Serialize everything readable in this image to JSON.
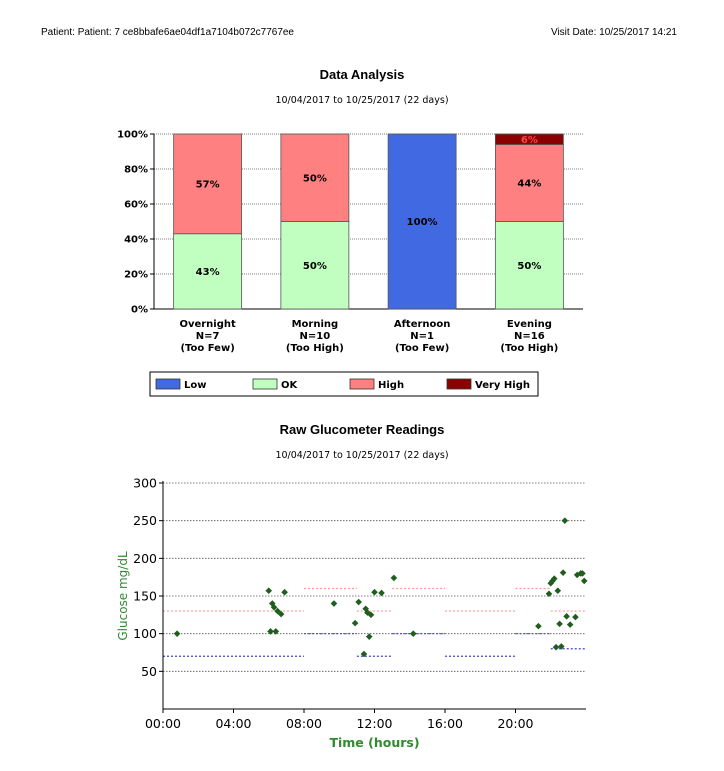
{
  "header": {
    "patient": "Patient: Patient: 7 ce8bbafe6ae04df1a7104b072c7767ee",
    "visit_date": "Visit Date: 10/25/2017 14:21"
  },
  "chart_data": [
    {
      "type": "bar",
      "title": "Data Analysis",
      "subtitle": "10/04/2017 to 10/25/2017 (22 days)",
      "stacked": true,
      "ylim": [
        0,
        100
      ],
      "yticks": [
        "0%",
        "20%",
        "40%",
        "60%",
        "80%",
        "100%"
      ],
      "categories": [
        {
          "name": "Overnight",
          "n": "N=7",
          "status": "(Too Few)"
        },
        {
          "name": "Morning",
          "n": "N=10",
          "status": "(Too High)"
        },
        {
          "name": "Afternoon",
          "n": "N=1",
          "status": "(Too Few)"
        },
        {
          "name": "Evening",
          "n": "N=16",
          "status": "(Too High)"
        }
      ],
      "series": [
        {
          "name": "Low",
          "color": "#4169e1",
          "values": [
            0,
            0,
            100,
            0
          ],
          "labels": [
            "",
            "",
            "100%",
            ""
          ]
        },
        {
          "name": "OK",
          "color": "#c1ffc1",
          "values": [
            43,
            50,
            0,
            50
          ],
          "labels": [
            "43%",
            "50%",
            "",
            "50%"
          ]
        },
        {
          "name": "High",
          "color": "#ff8080",
          "values": [
            57,
            50,
            0,
            44
          ],
          "labels": [
            "57%",
            "50%",
            "",
            "44%"
          ]
        },
        {
          "name": "Very High",
          "color": "#8b0000",
          "values": [
            0,
            0,
            0,
            6
          ],
          "labels": [
            "",
            "",
            "",
            "6%"
          ]
        }
      ],
      "legend": [
        "Low",
        "OK",
        "High",
        "Very High"
      ],
      "legend_position": "bottom"
    },
    {
      "type": "scatter",
      "title": "Raw Glucometer Readings",
      "subtitle": "10/04/2017 to 10/25/2017 (22 days)",
      "xlabel": "Time (hours)",
      "ylabel": "Glucose mg/dL",
      "xlim": [
        0,
        24
      ],
      "ylim": [
        0,
        300
      ],
      "xticks": [
        {
          "v": 0,
          "label": "00:00"
        },
        {
          "v": 4,
          "label": "04:00"
        },
        {
          "v": 8,
          "label": "08:00"
        },
        {
          "v": 12,
          "label": "12:00"
        },
        {
          "v": 16,
          "label": "16:00"
        },
        {
          "v": 20,
          "label": "20:00"
        }
      ],
      "yticks": [
        50,
        100,
        150,
        200,
        250,
        300
      ],
      "color": "#1f5e1f",
      "points": [
        [
          0.8,
          100
        ],
        [
          6.0,
          157
        ],
        [
          6.1,
          103
        ],
        [
          6.2,
          140
        ],
        [
          6.3,
          135
        ],
        [
          6.4,
          103
        ],
        [
          6.5,
          130
        ],
        [
          6.7,
          126
        ],
        [
          6.9,
          155
        ],
        [
          9.7,
          140
        ],
        [
          10.9,
          114
        ],
        [
          11.1,
          142
        ],
        [
          11.4,
          73
        ],
        [
          11.5,
          133
        ],
        [
          11.6,
          128
        ],
        [
          11.7,
          96
        ],
        [
          11.8,
          125
        ],
        [
          12.0,
          155
        ],
        [
          12.4,
          154
        ],
        [
          13.1,
          174
        ],
        [
          14.2,
          100
        ],
        [
          21.3,
          110
        ],
        [
          21.9,
          153
        ],
        [
          22.0,
          167
        ],
        [
          22.1,
          170
        ],
        [
          22.2,
          173
        ],
        [
          22.3,
          82
        ],
        [
          22.4,
          157
        ],
        [
          22.5,
          113
        ],
        [
          22.6,
          83
        ],
        [
          22.7,
          181
        ],
        [
          22.8,
          250
        ],
        [
          22.9,
          123
        ],
        [
          23.1,
          112
        ],
        [
          23.4,
          122
        ],
        [
          23.5,
          178
        ],
        [
          23.7,
          180
        ],
        [
          23.8,
          180
        ],
        [
          23.9,
          170
        ]
      ],
      "target_ranges": {
        "high_color": "#ff9999",
        "low_color": "#4444cc",
        "segments": [
          {
            "x0": 0,
            "x1": 8,
            "high": 130,
            "low": 70
          },
          {
            "x0": 8,
            "x1": 11,
            "high": 160,
            "low": 100
          },
          {
            "x0": 11,
            "x1": 13,
            "high": 130,
            "low": 70
          },
          {
            "x0": 13,
            "x1": 16,
            "high": 160,
            "low": 100
          },
          {
            "x0": 16,
            "x1": 20,
            "high": 130,
            "low": 70
          },
          {
            "x0": 20,
            "x1": 22,
            "high": 160,
            "low": 100
          },
          {
            "x0": 22,
            "x1": 24,
            "high": 130,
            "low": 80
          }
        ]
      }
    }
  ]
}
